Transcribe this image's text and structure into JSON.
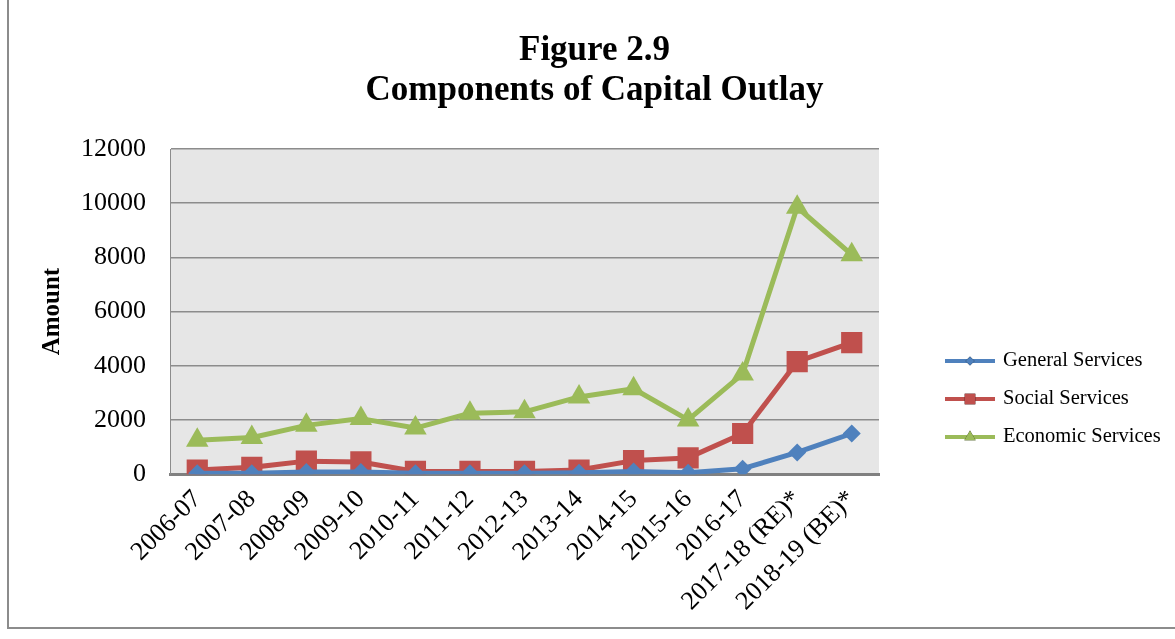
{
  "chart_data": {
    "type": "line",
    "title": "Figure 2.9",
    "subtitle": "Components of Capital Outlay",
    "ylabel": "Amount",
    "categories": [
      "2006-07",
      "2007-08",
      "2008-09",
      "2009-10",
      "2010-11",
      "2011-12",
      "2012-13",
      "2013-14",
      "2014-15",
      "2015-16",
      "2016-17",
      "2017-18 (RE)*",
      "2018-19 (BE)*"
    ],
    "series": [
      {
        "name": "General Services",
        "color": "#4f81bd",
        "marker": "diamond",
        "values": [
          30,
          30,
          80,
          80,
          30,
          30,
          30,
          50,
          100,
          50,
          200,
          800,
          1500
        ]
      },
      {
        "name": "Social Services",
        "color": "#c0504d",
        "marker": "square",
        "values": [
          150,
          250,
          480,
          450,
          100,
          100,
          100,
          150,
          500,
          600,
          1500,
          4150,
          4850
        ]
      },
      {
        "name": "Economic Services",
        "color": "#9bbb59",
        "marker": "triangle",
        "values": [
          1250,
          1350,
          1800,
          2050,
          1700,
          2250,
          2300,
          2850,
          3150,
          2000,
          3700,
          9850,
          8100
        ]
      }
    ],
    "ylim": [
      0,
      12000
    ],
    "yticks": [
      0,
      2000,
      4000,
      6000,
      8000,
      10000,
      12000
    ],
    "grid": "y",
    "legend": "right"
  }
}
